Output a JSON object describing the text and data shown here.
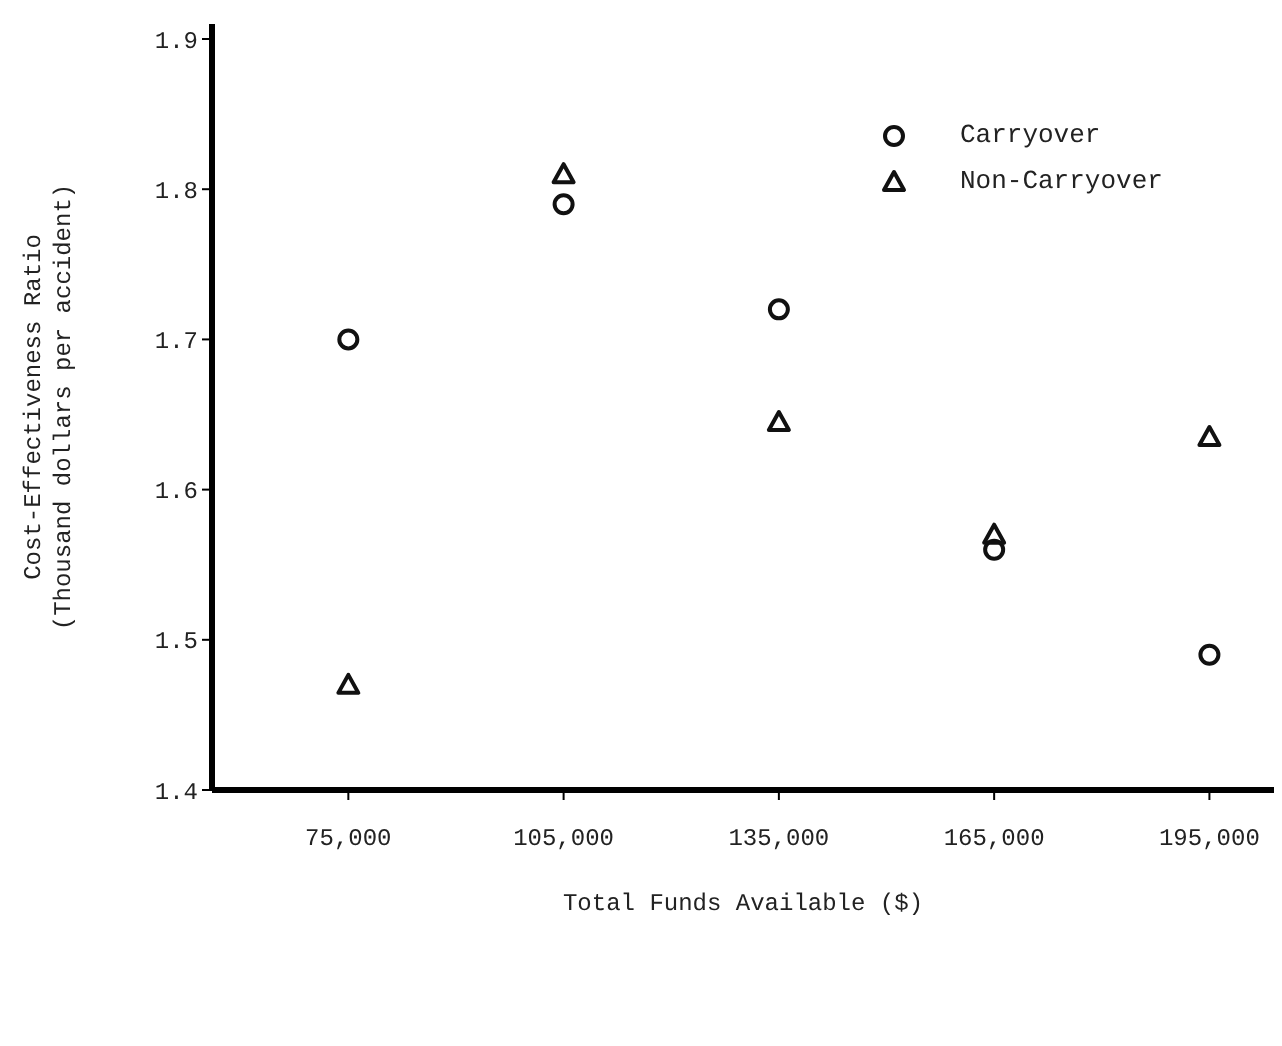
{
  "chart_data": {
    "type": "scatter",
    "xlabel": "Total Funds Available ($)",
    "ylabel": "Cost-Effectiveness Ratio\n(Thousand dollars per accident)",
    "x": [
      75000,
      105000,
      135000,
      165000,
      195000
    ],
    "series": [
      {
        "name": "Carryover",
        "color": "#111111",
        "marker": "circle",
        "values": [
          1.7,
          1.79,
          1.72,
          1.56,
          1.49
        ]
      },
      {
        "name": "Non-Carryover",
        "color": "#111111",
        "marker": "triangle",
        "values": [
          1.47,
          1.81,
          1.645,
          1.57,
          1.635
        ]
      }
    ],
    "xlim": [
      56000,
      204000
    ],
    "xticks": [
      {
        "value": 75000,
        "label": "75,000"
      },
      {
        "value": 105000,
        "label": "105,000"
      },
      {
        "value": 135000,
        "label": "135,000"
      },
      {
        "value": 165000,
        "label": "165,000"
      },
      {
        "value": 195000,
        "label": "195,000"
      }
    ],
    "ylim": [
      1.4,
      1.91
    ],
    "yticks": [
      1.4,
      1.5,
      1.6,
      1.7,
      1.8,
      1.9
    ],
    "grid": false,
    "legend": "top right"
  }
}
